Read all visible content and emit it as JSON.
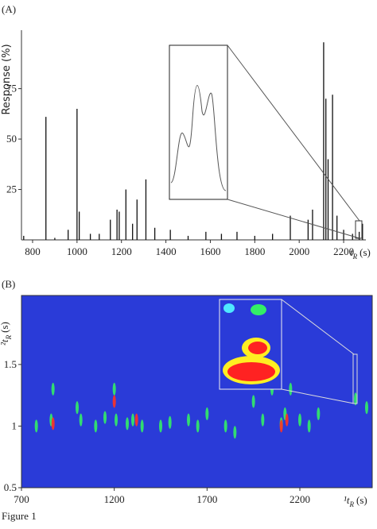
{
  "chart_data": [
    {
      "type": "stem",
      "panel": "(A)",
      "y_label": "Response (%)",
      "x_label": {
        "main": "t",
        "sub": "R",
        "unit": "(s)"
      },
      "color": "#111111",
      "x": [
        760,
        860,
        900,
        960,
        1000,
        1010,
        1060,
        1100,
        1150,
        1180,
        1190,
        1220,
        1250,
        1270,
        1310,
        1350,
        1420,
        1500,
        1580,
        1650,
        1720,
        1800,
        1880,
        1960,
        2040,
        2060,
        2110,
        2120,
        2130,
        2150,
        2170,
        2200,
        2240,
        2270,
        2285
      ],
      "values": [
        2,
        61,
        1,
        5,
        65,
        14,
        3,
        3,
        10,
        15,
        14,
        25,
        8,
        20,
        30,
        6,
        5,
        2,
        4,
        3,
        4,
        2,
        3,
        12,
        10,
        15,
        98,
        70,
        40,
        72,
        12,
        5,
        3,
        4,
        8
      ],
      "xlim": [
        750,
        2300
      ],
      "xticks": [
        800,
        1000,
        1200,
        1400,
        1600,
        1800,
        2000,
        2200
      ],
      "ylim": [
        0,
        104
      ],
      "yticks": [
        25,
        50,
        75
      ]
    },
    {
      "type": "heatmap",
      "panel": "(B)",
      "x_label": {
        "main": "¹t",
        "sub": "R",
        "unit": "(s)"
      },
      "y_label": {
        "main": "²t",
        "sub": "R",
        "unit": "(s)"
      },
      "background": "#2a3bd8",
      "series": [
        {
          "color": "#33ee66",
          "x": [
            780,
            860,
            870,
            1000,
            1020,
            1100,
            1150,
            1200,
            1210,
            1270,
            1300,
            1350,
            1450,
            1500,
            1600,
            1650,
            1700,
            1800,
            1850,
            1950,
            2000,
            2050,
            2100,
            2120,
            2150,
            2200,
            2250,
            2300,
            2500,
            2560
          ],
          "y": [
            1.0,
            1.05,
            1.3,
            1.15,
            1.05,
            1.0,
            1.07,
            1.3,
            1.05,
            1.02,
            1.05,
            1.0,
            1.0,
            1.03,
            1.05,
            1.0,
            1.1,
            1.0,
            0.95,
            1.2,
            1.05,
            1.3,
            1.02,
            1.1,
            1.3,
            1.05,
            1.0,
            1.1,
            1.22,
            1.15
          ]
        },
        {
          "color": "#ff3322",
          "x": [
            870,
            1200,
            1320,
            2100,
            2130
          ],
          "y": [
            1.02,
            1.2,
            1.05,
            1.0,
            1.05
          ]
        }
      ],
      "xlim": [
        700,
        2590
      ],
      "xticks": [
        700,
        1200,
        1700,
        2200
      ],
      "ylim": [
        0.5,
        2.06
      ],
      "yticks": [
        0.5,
        1,
        1.5
      ]
    }
  ],
  "caption": "Figure 1"
}
